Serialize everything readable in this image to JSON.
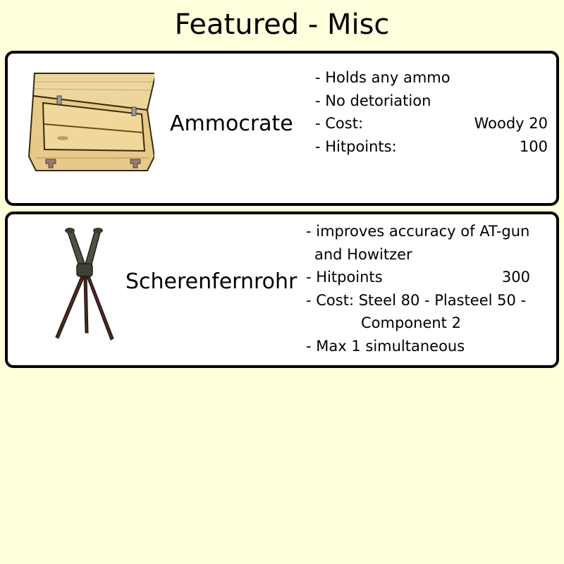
{
  "header": {
    "title": "Featured - Misc"
  },
  "items": [
    {
      "name": "Ammocrate",
      "image_icon": "ammo-crate-icon",
      "lines": {
        "l1": "- Holds any ammo",
        "l2": "- No detoriation",
        "cost_label": "- Cost:",
        "cost_value": "Woody 20",
        "hp_label": "- Hitpoints:",
        "hp_value": "100"
      }
    },
    {
      "name": "Scherenfernrohr",
      "image_icon": "scissors-periscope-icon",
      "lines": {
        "l1": "- improves accuracy of AT-gun",
        "l2": "and Howitzer",
        "hp_label": "- Hitpoints",
        "hp_value": "300",
        "cost_l1": "- Cost: Steel 80 - Plasteel 50 -",
        "cost_l2": "Component 2",
        "max_line": "- Max 1 simultaneous"
      }
    }
  ],
  "colors": {
    "background": "#ffffdd",
    "card": "#ffffff",
    "border": "#000000",
    "wood": "#e8cf8f"
  }
}
